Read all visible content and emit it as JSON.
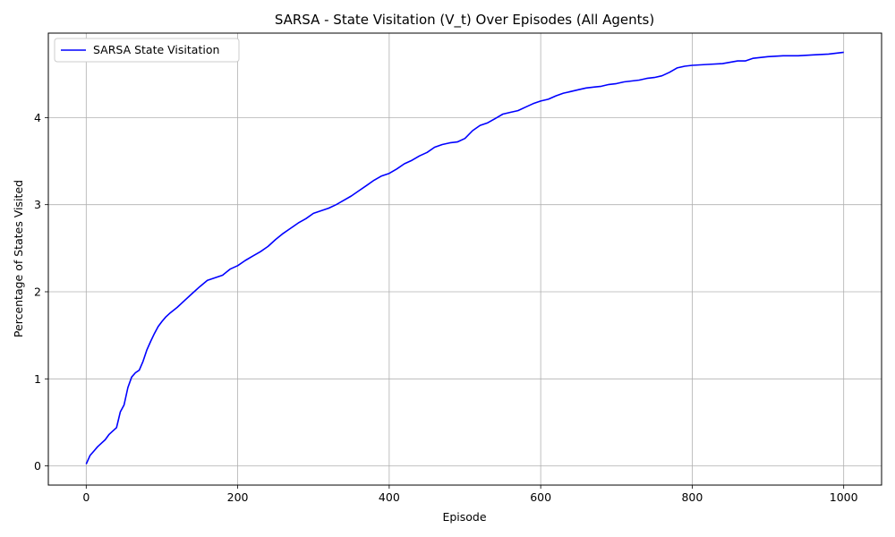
{
  "chart_data": {
    "type": "line",
    "title": "SARSA - State Visitation (V_t) Over Episodes (All Agents)",
    "xlabel": "Episode",
    "ylabel": "Percentage of States Visited",
    "xlim": [
      -50,
      1050
    ],
    "ylim": [
      -0.22,
      4.97
    ],
    "xticks": [
      0,
      200,
      400,
      600,
      800,
      1000
    ],
    "yticks": [
      0,
      1,
      2,
      3,
      4
    ],
    "grid": true,
    "legend_position": "top-left",
    "series": [
      {
        "name": "SARSA State Visitation",
        "color": "#0000ff",
        "x": [
          0,
          5,
          10,
          15,
          20,
          25,
          30,
          35,
          40,
          45,
          50,
          55,
          60,
          65,
          70,
          75,
          80,
          85,
          90,
          95,
          100,
          105,
          110,
          120,
          130,
          140,
          150,
          160,
          170,
          180,
          190,
          200,
          210,
          220,
          230,
          240,
          250,
          260,
          270,
          280,
          290,
          300,
          310,
          320,
          330,
          340,
          350,
          360,
          370,
          380,
          390,
          400,
          410,
          420,
          430,
          440,
          450,
          460,
          470,
          480,
          490,
          500,
          510,
          520,
          530,
          540,
          550,
          560,
          570,
          580,
          590,
          600,
          610,
          620,
          630,
          640,
          650,
          660,
          670,
          680,
          690,
          700,
          710,
          720,
          730,
          740,
          750,
          760,
          770,
          780,
          790,
          800,
          820,
          840,
          860,
          870,
          880,
          900,
          920,
          940,
          960,
          980,
          1000
        ],
        "y": [
          0.02,
          0.12,
          0.17,
          0.22,
          0.26,
          0.3,
          0.36,
          0.4,
          0.44,
          0.62,
          0.7,
          0.9,
          1.02,
          1.07,
          1.1,
          1.2,
          1.33,
          1.43,
          1.52,
          1.6,
          1.66,
          1.71,
          1.75,
          1.82,
          1.9,
          1.98,
          2.06,
          2.13,
          2.16,
          2.19,
          2.26,
          2.3,
          2.36,
          2.41,
          2.46,
          2.52,
          2.6,
          2.67,
          2.73,
          2.79,
          2.84,
          2.9,
          2.93,
          2.96,
          3.0,
          3.05,
          3.1,
          3.16,
          3.22,
          3.28,
          3.33,
          3.36,
          3.41,
          3.47,
          3.51,
          3.56,
          3.6,
          3.66,
          3.69,
          3.71,
          3.72,
          3.76,
          3.85,
          3.91,
          3.94,
          3.99,
          4.04,
          4.06,
          4.08,
          4.12,
          4.16,
          4.19,
          4.21,
          4.25,
          4.28,
          4.3,
          4.32,
          4.34,
          4.35,
          4.36,
          4.38,
          4.39,
          4.41,
          4.42,
          4.43,
          4.45,
          4.46,
          4.48,
          4.52,
          4.57,
          4.59,
          4.6,
          4.61,
          4.62,
          4.65,
          4.65,
          4.68,
          4.7,
          4.71,
          4.71,
          4.72,
          4.73,
          4.75
        ]
      }
    ]
  }
}
